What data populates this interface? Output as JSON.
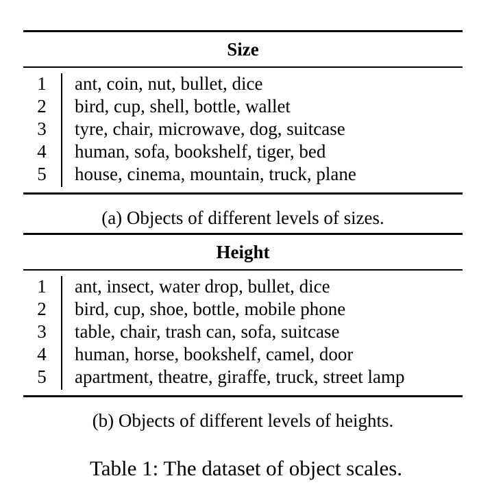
{
  "size_table": {
    "header": "Size",
    "rows": [
      {
        "level": "1",
        "items": "ant, coin, nut, bullet, dice"
      },
      {
        "level": "2",
        "items": "bird, cup, shell, bottle, wallet"
      },
      {
        "level": "3",
        "items": "tyre, chair, microwave, dog, suitcase"
      },
      {
        "level": "4",
        "items": "human, sofa, bookshelf, tiger, bed"
      },
      {
        "level": "5",
        "items": "house, cinema, mountain, truck, plane"
      }
    ],
    "caption": "(a) Objects of different levels of sizes."
  },
  "height_table": {
    "header": "Height",
    "rows": [
      {
        "level": "1",
        "items": "ant, insect, water drop, bullet, dice"
      },
      {
        "level": "2",
        "items": "bird, cup, shoe, bottle, mobile phone"
      },
      {
        "level": "3",
        "items": "table, chair, trash can, sofa, suitcase"
      },
      {
        "level": "4",
        "items": "human, horse, bookshelf, camel, door"
      },
      {
        "level": "5",
        "items": "apartment, theatre, giraffe, truck, street lamp"
      }
    ],
    "caption": "(b) Objects of different levels of heights."
  },
  "table_caption": "Table 1: The dataset of object scales."
}
